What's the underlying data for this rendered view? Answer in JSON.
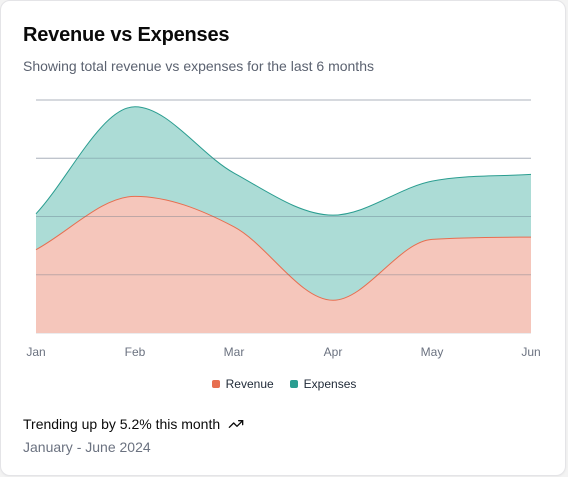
{
  "card": {
    "title": "Revenue vs Expenses",
    "subtitle": "Showing total revenue vs expenses for the last 6 months"
  },
  "footer": {
    "trend_text": "Trending up by 5.2% this month",
    "trend_icon": "trending-up-icon",
    "date_range": "January - June 2024"
  },
  "chart_data": {
    "type": "area",
    "stacked": true,
    "categories": [
      "Jan",
      "Feb",
      "Mar",
      "Apr",
      "May",
      "Jun"
    ],
    "series": [
      {
        "name": "Revenue",
        "values": [
          186,
          305,
          237,
          73,
          209,
          214
        ],
        "color": "#e76e50"
      },
      {
        "name": "Expenses",
        "values": [
          80,
          200,
          120,
          190,
          130,
          140
        ],
        "color": "#2a9d90"
      }
    ],
    "ylim": [
      0,
      520
    ],
    "grid": true,
    "legend": "bottom-center",
    "colors": {
      "revenue_fill": "#f5c6bb",
      "expenses_fill": "#acdcd6"
    }
  }
}
